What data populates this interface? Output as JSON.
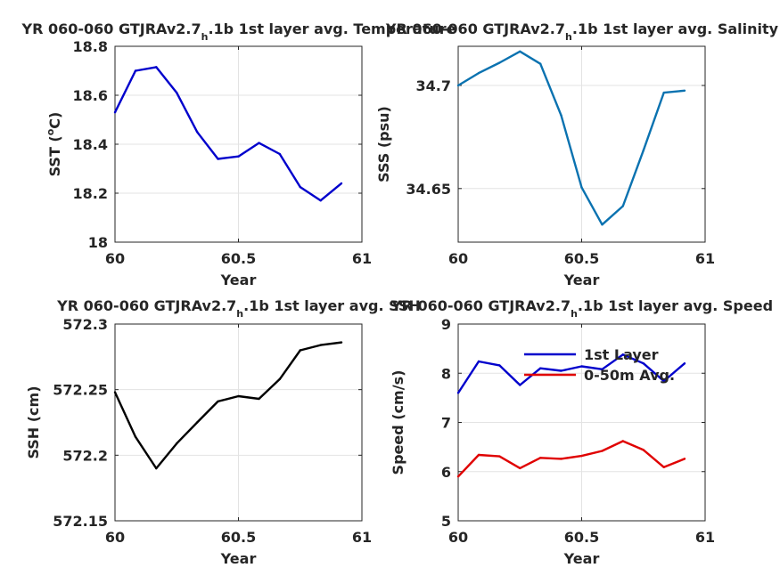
{
  "colors": {
    "sst": "#0000cc",
    "sss": "#0a72b0",
    "ssh": "#000000",
    "speed_1st": "#0000cc",
    "speed_050": "#e00000",
    "grid": "#e3e3e3",
    "axis": "#262626"
  },
  "chart_data": [
    {
      "type": "line",
      "title_main": "YR 060-060 GTJRAv2.7",
      "title_sub": "h",
      "title_rest": ".1b 1st layer avg. Temperature",
      "xlabel": "Year",
      "ylabel": "SST (",
      "ylabel_sup": "o",
      "ylabel_end": "C)",
      "xlim": [
        60,
        61
      ],
      "ylim": [
        18,
        18.8
      ],
      "xticks": [
        60,
        60.5,
        61
      ],
      "xtick_labels": [
        "60",
        "60.5",
        "61"
      ],
      "yticks": [
        18,
        18.2,
        18.4,
        18.6,
        18.8
      ],
      "ytick_labels": [
        "18",
        "18.2",
        "18.4",
        "18.6",
        "18.8"
      ],
      "grid": true,
      "series": [
        {
          "color_key": "sst",
          "x": [
            60.0,
            60.083,
            60.167,
            60.25,
            60.333,
            60.417,
            60.5,
            60.583,
            60.667,
            60.75,
            60.833,
            60.917
          ],
          "y": [
            18.53,
            18.7,
            18.715,
            18.61,
            18.45,
            18.34,
            18.35,
            18.405,
            18.36,
            18.225,
            18.17,
            18.24
          ]
        }
      ]
    },
    {
      "type": "line",
      "title_main": "YR 060-060 GTJRAv2.7",
      "title_sub": "h",
      "title_rest": ".1b 1st layer avg. Salinity",
      "xlabel": "Year",
      "ylabel": "SSS (psu)",
      "xlim": [
        60,
        61
      ],
      "ylim": [
        34.624,
        34.719
      ],
      "xticks": [
        60,
        60.5,
        61
      ],
      "xtick_labels": [
        "60",
        "60.5",
        "61"
      ],
      "yticks": [
        34.65,
        34.7
      ],
      "ytick_labels": [
        "34.65",
        "34.7"
      ],
      "grid": true,
      "series": [
        {
          "color_key": "sss",
          "x": [
            60.0,
            60.083,
            60.167,
            60.25,
            60.333,
            60.417,
            60.5,
            60.583,
            60.667,
            60.75,
            60.833,
            60.917
          ],
          "y": [
            34.7,
            34.706,
            34.711,
            34.7165,
            34.7105,
            34.6855,
            34.6505,
            34.6325,
            34.6415,
            34.6685,
            34.6965,
            34.6975
          ]
        }
      ]
    },
    {
      "type": "line",
      "title_main": "YR 060-060 GTJRAv2.7",
      "title_sub": "h",
      "title_rest": ".1b 1st layer avg. SSH",
      "xlabel": "Year",
      "ylabel": "SSH (cm)",
      "xlim": [
        60,
        61
      ],
      "ylim": [
        572.15,
        572.3
      ],
      "xticks": [
        60,
        60.5,
        61
      ],
      "xtick_labels": [
        "60",
        "60.5",
        "61"
      ],
      "yticks": [
        572.15,
        572.2,
        572.25,
        572.3
      ],
      "ytick_labels": [
        "572.15",
        "572.2",
        "572.25",
        "572.3"
      ],
      "grid": true,
      "series": [
        {
          "color_key": "ssh",
          "x": [
            60.0,
            60.083,
            60.167,
            60.25,
            60.333,
            60.417,
            60.5,
            60.583,
            60.667,
            60.75,
            60.833,
            60.917
          ],
          "y": [
            572.248,
            572.214,
            572.19,
            572.209,
            572.225,
            572.241,
            572.245,
            572.243,
            572.258,
            572.28,
            572.284,
            572.286
          ]
        }
      ]
    },
    {
      "type": "line",
      "title_main": "YR 060-060 GTJRAv2.7",
      "title_sub": "h",
      "title_rest": ".1b 1st layer avg. Speed",
      "xlabel": "Year",
      "ylabel": "Speed (cm/s)",
      "xlim": [
        60,
        61
      ],
      "ylim": [
        5,
        9
      ],
      "xticks": [
        60,
        60.5,
        61
      ],
      "xtick_labels": [
        "60",
        "60.5",
        "61"
      ],
      "yticks": [
        5,
        6,
        7,
        8,
        9
      ],
      "ytick_labels": [
        "5",
        "6",
        "7",
        "8",
        "9"
      ],
      "grid": true,
      "legend": "top-right",
      "series": [
        {
          "name": "1st Layer",
          "color_key": "speed_1st",
          "x": [
            60.0,
            60.083,
            60.167,
            60.25,
            60.333,
            60.417,
            60.5,
            60.583,
            60.667,
            60.75,
            60.833,
            60.917
          ],
          "y": [
            7.6,
            8.24,
            8.16,
            7.76,
            8.1,
            8.05,
            8.14,
            8.08,
            8.38,
            8.2,
            7.84,
            8.2
          ]
        },
        {
          "name": "0-50m Avg.",
          "color_key": "speed_050",
          "x": [
            60.0,
            60.083,
            60.167,
            60.25,
            60.333,
            60.417,
            60.5,
            60.583,
            60.667,
            60.75,
            60.833,
            60.917
          ],
          "y": [
            5.9,
            6.34,
            6.31,
            6.07,
            6.28,
            6.26,
            6.32,
            6.42,
            6.62,
            6.44,
            6.09,
            6.26
          ]
        }
      ]
    }
  ]
}
